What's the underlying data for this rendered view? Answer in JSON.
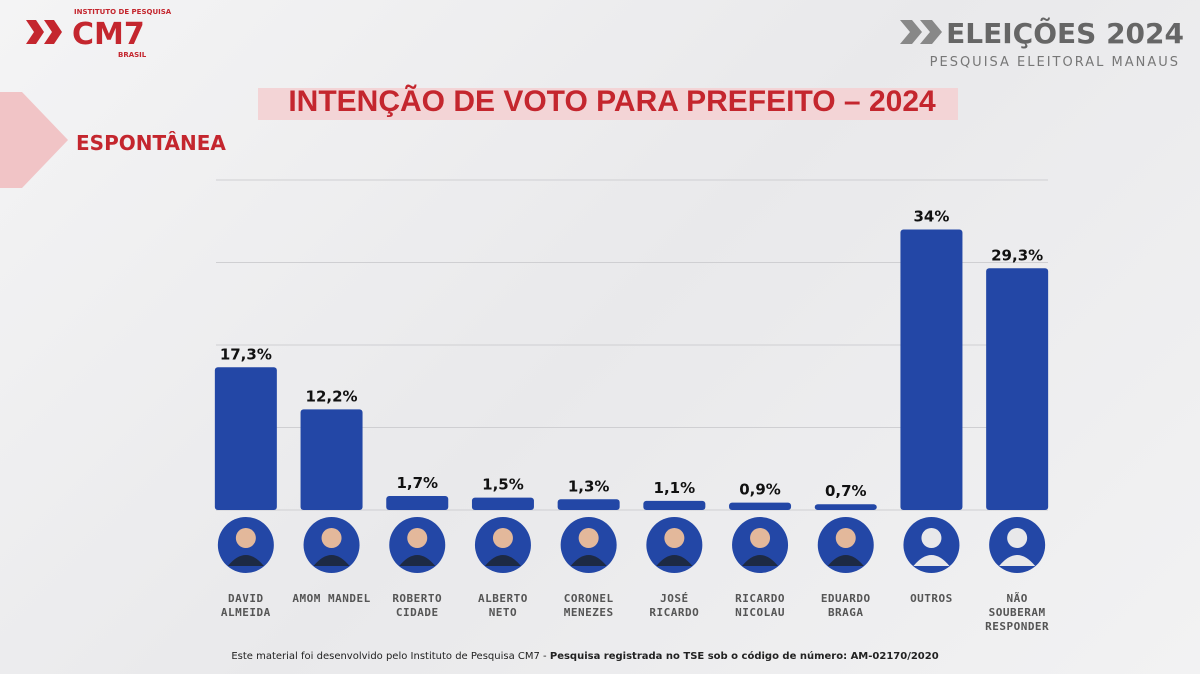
{
  "header": {
    "brand": "CM7",
    "brand_top": "INSTITUTO DE PESQUISA",
    "brand_bottom": "BRASIL",
    "event": "ELEIÇÕES 2024",
    "event_sub": "PESQUISA ELEITORAL MANAUS"
  },
  "footer": {
    "text": "Este material foi desenvolvido pelo Instituto de Pesquisa CM7 -",
    "bold": "Pesquisa registrada no TSE sob o código de número: AM-02170/2020"
  },
  "chart_data": {
    "type": "bar",
    "title": "INTENÇÃO DE VOTO PARA PREFEITO – 2024",
    "subtitle": "ESPONTÂNEA",
    "categories": [
      "DAVID ALMEIDA",
      "AMOM MANDEL",
      "ROBERTO CIDADE",
      "ALBERTO NETO",
      "CORONEL MENEZES",
      "JOSÉ RICARDO",
      "RICARDO NICOLAU",
      "EDUARDO BRAGA",
      "OUTROS",
      "NÃO SOUBERAM RESPONDER"
    ],
    "values": [
      17.3,
      12.2,
      1.7,
      1.5,
      1.3,
      1.1,
      0.9,
      0.7,
      34,
      29.3
    ],
    "value_labels": [
      "17,3%",
      "12,2%",
      "1,7%",
      "1,5%",
      "1,3%",
      "1,1%",
      "0,9%",
      "0,7%",
      "34%",
      "29,3%"
    ],
    "color": "#2347a6",
    "ylim": [
      0,
      40
    ],
    "yticks": [
      0,
      10,
      20,
      30,
      40
    ],
    "grid": true
  }
}
